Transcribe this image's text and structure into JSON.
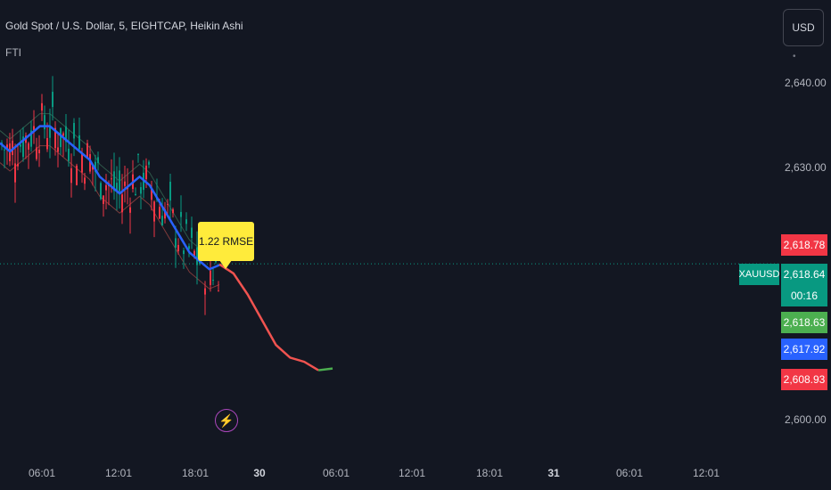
{
  "header": {
    "title": "Gold Spot / U.S. Dollar, 5, EIGHTCAP, Heikin Ashi",
    "indicator": "FTI"
  },
  "currency_button": "USD",
  "rmse_label": "1.22 RMSE",
  "symbol_label": "XAUUSD",
  "price_badges": [
    {
      "value": "2,618.78",
      "color": "#f23645"
    },
    {
      "value": "2,618.64",
      "color": "#089981"
    },
    {
      "value": "00:16",
      "color": "#089981"
    },
    {
      "value": "2,618.63",
      "color": "#4caf50"
    },
    {
      "value": "2,617.92",
      "color": "#2962ff"
    },
    {
      "value": "2,608.93",
      "color": "#f23645"
    }
  ],
  "chart_data": {
    "type": "line",
    "ylim": [
      2596,
      2650
    ],
    "y_ticks": [
      "2,640.00",
      "2,630.00",
      "2,600.00"
    ],
    "y_tick_values": [
      2640,
      2630,
      2600
    ],
    "x_ticks": [
      "06:01",
      "12:01",
      "18:01",
      "30",
      "06:01",
      "12:01",
      "18:01",
      "31",
      "06:01",
      "12:01"
    ],
    "x_tick_index": [
      0,
      1,
      2,
      3,
      4,
      5,
      6,
      7,
      8,
      9
    ],
    "last_price": 2618.64,
    "colors": {
      "up": "#089981",
      "down": "#f23645",
      "ma": "#2962ff",
      "forecast": "#f05350",
      "forecast_end": "#4caf50",
      "band": "#7f3b3b"
    },
    "series": [
      {
        "values": [
          2633,
          2632,
          2633,
          2634,
          2635,
          2635,
          2634,
          2633,
          2632,
          2631,
          2629,
          2628,
          2627,
          2628,
          2629,
          2628,
          2626,
          2624,
          2622,
          2620,
          2619,
          2618,
          2618.5
        ]
      },
      {
        "values": [
          2618.6,
          2617.5,
          2615,
          2612,
          2609,
          2607.5,
          2607,
          2606,
          2606.2
        ]
      }
    ]
  }
}
